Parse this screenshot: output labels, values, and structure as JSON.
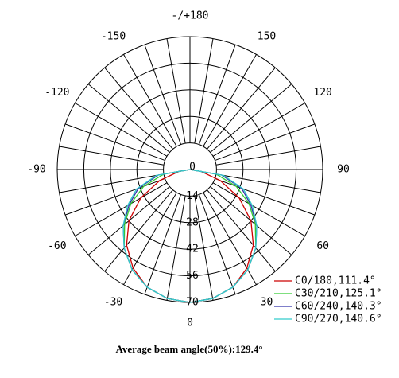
{
  "chart_data": {
    "type": "polar",
    "theta": [
      -90,
      -80,
      -70,
      -60,
      -50,
      -40,
      -30,
      -20,
      -10,
      0,
      10,
      20,
      30,
      40,
      50,
      60,
      70,
      80,
      90
    ],
    "series": [
      {
        "name": "C0/180,111.4°",
        "color": "#cc0000",
        "values": [
          0,
          6,
          17,
          30,
          42,
          52,
          60,
          66,
          69,
          70,
          69,
          66,
          60,
          52,
          42,
          30,
          17,
          6,
          0
        ]
      },
      {
        "name": "C30/210,125.1°",
        "color": "#33cc33",
        "values": [
          0,
          14,
          26,
          36,
          45,
          54,
          61,
          66,
          69,
          70,
          69,
          66,
          61,
          54,
          45,
          36,
          26,
          14,
          0
        ]
      },
      {
        "name": "C60/240,140.3°",
        "color": "#3333aa",
        "values": [
          0,
          17,
          29,
          37,
          46,
          54,
          61,
          66,
          69,
          70,
          69,
          66,
          61,
          54,
          46,
          37,
          29,
          17,
          0
        ]
      },
      {
        "name": "C90/270,140.6°",
        "color": "#33cccc",
        "values": [
          0,
          18,
          30,
          38,
          46,
          54,
          61,
          66,
          69,
          70,
          69,
          66,
          61,
          54,
          46,
          38,
          30,
          18,
          0
        ]
      }
    ],
    "rlim": [
      0,
      70
    ],
    "rticks": [
      0,
      14,
      28,
      42,
      56,
      70
    ],
    "thetaticks": [
      -150,
      -120,
      -90,
      -60,
      -30,
      0,
      30,
      60,
      90,
      120,
      150,
      {
        "value": 180,
        "label": "-/+180"
      }
    ],
    "angular_grid_step": 10,
    "footer": "Average beam angle(50%):129.4°"
  }
}
